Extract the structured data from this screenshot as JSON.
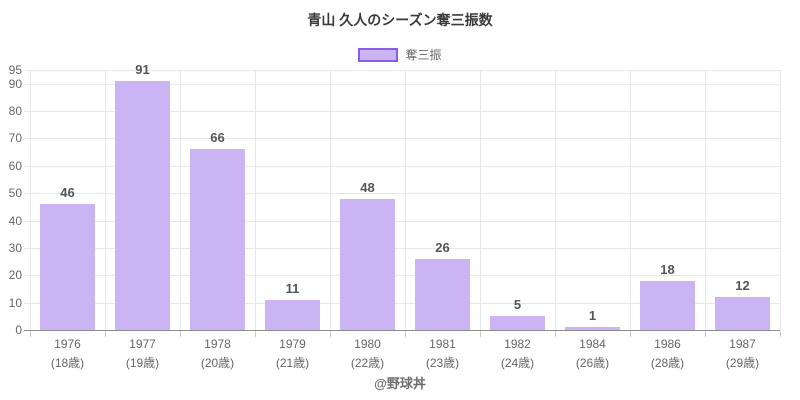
{
  "chart_data": {
    "type": "bar",
    "title": "青山 久人のシーズン奪三振数",
    "legend": [
      {
        "label": "奪三振"
      }
    ],
    "legend_position": "top",
    "categories": [
      "1976",
      "1977",
      "1978",
      "1979",
      "1980",
      "1981",
      "1982",
      "1984",
      "1986",
      "1987"
    ],
    "category_ages": [
      "(18歳)",
      "(19歳)",
      "(20歳)",
      "(21歳)",
      "(22歳)",
      "(23歳)",
      "(24歳)",
      "(26歳)",
      "(28歳)",
      "(29歳)"
    ],
    "series": [
      {
        "name": "奪三振",
        "values": [
          46,
          91,
          66,
          11,
          48,
          26,
          5,
          1,
          18,
          12
        ]
      }
    ],
    "ylim": [
      0,
      95
    ],
    "yticks": [
      0,
      10,
      20,
      30,
      40,
      50,
      60,
      70,
      80,
      90,
      95
    ],
    "grid": true,
    "xlabel": "",
    "ylabel": ""
  },
  "colors": {
    "bar_fill": "#cab4f4",
    "legend_border": "#8a5ce8",
    "grid": "#e7e7e7",
    "axis": "#8c8c8c",
    "title_text": "#3a3a3a",
    "tick_text": "#666666",
    "value_text": "#555555"
  },
  "footer": {
    "credit": "@野球丼"
  }
}
